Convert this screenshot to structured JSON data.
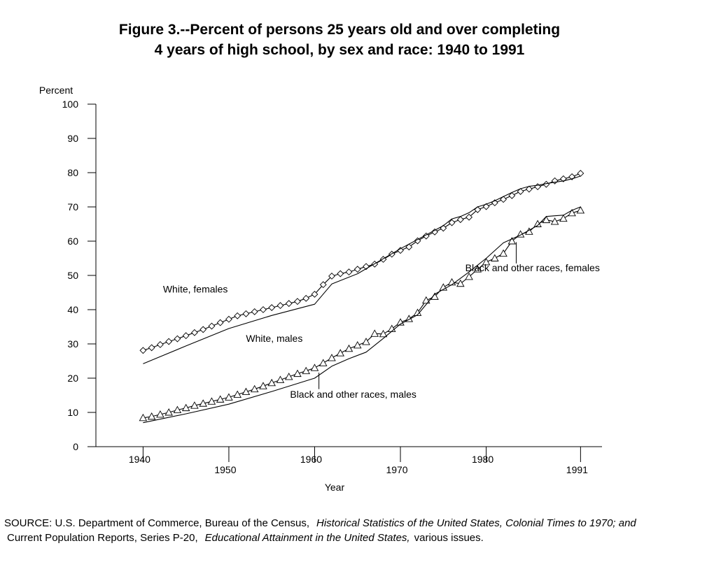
{
  "title": {
    "line1": "Figure 3.--Percent of persons 25 years old and over completing",
    "line2": "4 years of high school, by sex and race:  1940 to 1991"
  },
  "source": {
    "line1_prefix": "SOURCE:  U.S. Department of Commerce, Bureau of the Census,",
    "line1_italic": "Historical Statistics of the United States, Colonial Times to 1970; and",
    "line2_prefix": "Current Population Reports, Series P-20,",
    "line2_italic": "Educational Attainment in  the United States,",
    "line2_suffix": "various issues."
  },
  "chart_data": {
    "type": "line",
    "title": "Percent of persons 25 years old and over completing 4 years of high school, by sex and race: 1940 to 1991",
    "xlabel": "Year",
    "ylabel": "Percent",
    "xlim": [
      1934.5,
      1993.5
    ],
    "ylim": [
      0,
      100
    ],
    "y_ticks": [
      0,
      10,
      20,
      30,
      40,
      50,
      60,
      70,
      80,
      90,
      100
    ],
    "x_ticks": [
      1940,
      1950,
      1960,
      1970,
      1980,
      1991
    ],
    "grid": false,
    "series": [
      {
        "name": "White, females",
        "marker": "diamond",
        "x": [
          1940,
          1941,
          1942,
          1943,
          1944,
          1945,
          1946,
          1947,
          1948,
          1949,
          1950,
          1951,
          1952,
          1953,
          1954,
          1955,
          1956,
          1957,
          1958,
          1959,
          1960,
          1961,
          1962,
          1963,
          1964,
          1965,
          1966,
          1967,
          1968,
          1969,
          1970,
          1971,
          1972,
          1973,
          1974,
          1975,
          1976,
          1977,
          1978,
          1979,
          1980,
          1981,
          1982,
          1983,
          1984,
          1985,
          1986,
          1987,
          1988,
          1989,
          1990,
          1991
        ],
        "values": [
          28.1,
          28.9,
          29.8,
          30.7,
          31.5,
          32.4,
          33.3,
          34.2,
          35.2,
          36.2,
          37.2,
          38.2,
          38.8,
          39.4,
          40.0,
          40.6,
          41.2,
          41.8,
          42.4,
          43.3,
          44.5,
          47.3,
          49.8,
          50.5,
          51.0,
          51.8,
          52.6,
          53.3,
          54.7,
          56.2,
          57.3,
          58.3,
          60.1,
          61.5,
          62.7,
          63.8,
          65.4,
          66.3,
          67.0,
          69.2,
          70.1,
          71.2,
          72.2,
          73.3,
          74.5,
          75.2,
          75.9,
          76.6,
          77.6,
          78.2,
          78.8,
          79.8
        ]
      },
      {
        "name": "White, males",
        "marker": "none",
        "x": [
          1940,
          1945,
          1950,
          1955,
          1960,
          1962,
          1965,
          1970,
          1975,
          1976,
          1977,
          1978,
          1979,
          1980,
          1981,
          1982,
          1983,
          1984,
          1985,
          1986,
          1987,
          1988,
          1989,
          1990,
          1991
        ],
        "values": [
          24.2,
          29.4,
          34.5,
          38.3,
          41.6,
          47.5,
          50.5,
          57.8,
          64.5,
          66.5,
          67.2,
          68.3,
          70.0,
          70.8,
          71.8,
          73.0,
          74.2,
          75.3,
          76.0,
          76.3,
          76.8,
          77.2,
          77.6,
          78.2,
          79.0
        ]
      },
      {
        "name": "Black and other races, females",
        "marker": "triangle",
        "x": [
          1940,
          1941,
          1942,
          1943,
          1944,
          1945,
          1946,
          1947,
          1948,
          1949,
          1950,
          1951,
          1952,
          1953,
          1954,
          1955,
          1956,
          1957,
          1958,
          1959,
          1960,
          1961,
          1962,
          1963,
          1964,
          1965,
          1966,
          1967,
          1968,
          1969,
          1970,
          1971,
          1972,
          1973,
          1974,
          1975,
          1976,
          1977,
          1978,
          1979,
          1980,
          1981,
          1982,
          1983,
          1984,
          1985,
          1986,
          1987,
          1988,
          1989,
          1990,
          1991
        ],
        "values": [
          8.4,
          8.8,
          9.4,
          10.0,
          10.7,
          11.3,
          12.0,
          12.6,
          13.2,
          13.8,
          14.4,
          15.2,
          16.0,
          16.8,
          17.7,
          18.6,
          19.5,
          20.4,
          21.3,
          22.1,
          23.0,
          24.4,
          25.9,
          27.3,
          28.6,
          29.6,
          30.6,
          33.0,
          32.9,
          34.4,
          36.3,
          37.3,
          39.1,
          42.7,
          43.8,
          46.5,
          48.0,
          47.6,
          49.6,
          51.8,
          53.9,
          55.0,
          56.4,
          60.0,
          62.0,
          62.8,
          65.0,
          66.2,
          65.7,
          66.6,
          68.2,
          69.0
        ]
      },
      {
        "name": "Black and other races, males",
        "marker": "none",
        "x": [
          1940,
          1945,
          1950,
          1955,
          1960,
          1962,
          1964,
          1966,
          1968,
          1970,
          1972,
          1974,
          1976,
          1978,
          1980,
          1982,
          1984,
          1986,
          1987,
          1988,
          1989,
          1990,
          1991
        ],
        "values": [
          7.0,
          9.6,
          12.4,
          16.1,
          20.0,
          23.5,
          25.7,
          27.6,
          31.6,
          35.8,
          38.5,
          44.5,
          47.3,
          51.0,
          55.0,
          59.5,
          61.8,
          64.6,
          67.2,
          67.4,
          67.6,
          69.0,
          70.0
        ]
      }
    ],
    "annotations": [
      {
        "text": "White, females",
        "x": 1946.1,
        "y": 45.0
      },
      {
        "text": "White, males",
        "x": 1955.3,
        "y": 30.6
      },
      {
        "text": "Black and other races, females",
        "x": 1985.4,
        "y": 51.2
      },
      {
        "text": "Black and other races, males",
        "x": 1964.5,
        "y": 14.3
      }
    ],
    "colors": {
      "line": "#000000",
      "marker_fill": "#ffffff",
      "background": "#ffffff"
    }
  }
}
